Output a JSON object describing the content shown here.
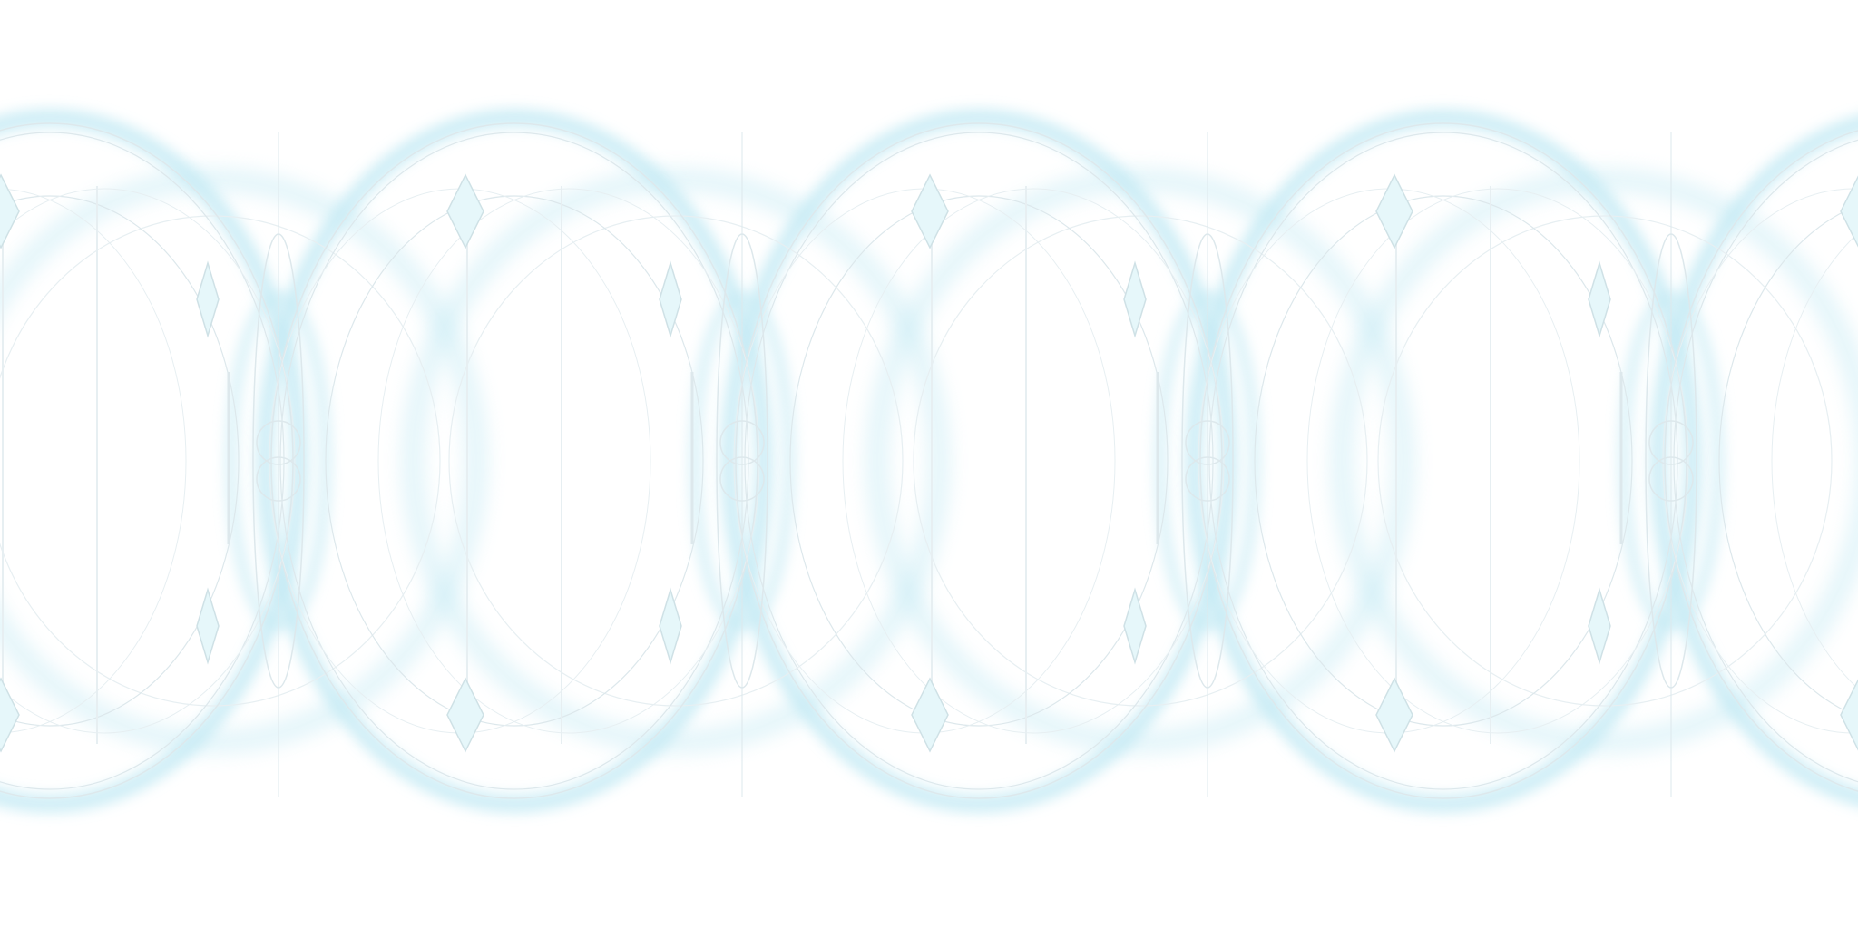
{
  "background": {
    "color": "#ffffff"
  },
  "pattern": {
    "name": "interlocking-ellipse-band",
    "glow_color": "#c4eaf4",
    "line_color": "#dde8ec",
    "faint_line_color": "#e7eff2",
    "diamond_fill": "#e6f7fa",
    "diamond_stroke": "#cfe1e6"
  }
}
